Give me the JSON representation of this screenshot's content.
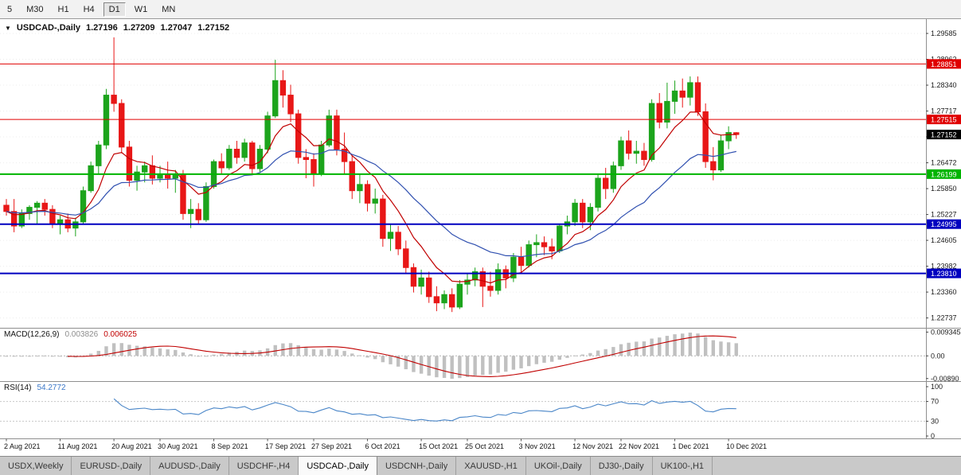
{
  "toolbar": {
    "timeframes": [
      "5",
      "M30",
      "H1",
      "H4",
      "D1",
      "W1",
      "MN"
    ],
    "selected": "D1"
  },
  "chart": {
    "title": {
      "symbol": "USDCAD-,Daily",
      "open": "1.27196",
      "high": "1.27209",
      "low": "1.27047",
      "close": "1.27152"
    },
    "current_price": {
      "value": "1.27152"
    },
    "price_axis": {
      "ticks": [
        "1.29585",
        "1.28962",
        "1.28340",
        "1.27717",
        "1.27095",
        "1.26472",
        "1.25850",
        "1.25227",
        "1.24605",
        "1.23982",
        "1.23360",
        "1.22737"
      ]
    },
    "hlines": [
      {
        "price": 1.28851,
        "label": "1.28851",
        "color": "#e00000",
        "width": 1
      },
      {
        "price": 1.27515,
        "label": "1.27515",
        "color": "#e00000",
        "width": 1
      },
      {
        "price": 1.26199,
        "label": "1.26199",
        "color": "#00b400",
        "width": 2
      },
      {
        "price": 1.24995,
        "label": "1.24995",
        "color": "#0000c0",
        "width": 2
      },
      {
        "price": 1.2381,
        "label": "1.23810",
        "color": "#0000c0",
        "width": 2
      }
    ],
    "date_axis": [
      {
        "label": "2 Aug 2021",
        "index": 0
      },
      {
        "label": "11 Aug 2021",
        "index": 7
      },
      {
        "label": "20 Aug 2021",
        "index": 14
      },
      {
        "label": "30 Aug 2021",
        "index": 20
      },
      {
        "label": "8 Sep 2021",
        "index": 27
      },
      {
        "label": "17 Sep 2021",
        "index": 34
      },
      {
        "label": "27 Sep 2021",
        "index": 40
      },
      {
        "label": "6 Oct 2021",
        "index": 47
      },
      {
        "label": "15 Oct 2021",
        "index": 54
      },
      {
        "label": "25 Oct 2021",
        "index": 60
      },
      {
        "label": "3 Nov 2021",
        "index": 67
      },
      {
        "label": "12 Nov 2021",
        "index": 74
      },
      {
        "label": "22 Nov 2021",
        "index": 80
      },
      {
        "label": "1 Dec 2021",
        "index": 87
      },
      {
        "label": "10 Dec 2021",
        "index": 94
      }
    ]
  },
  "indicators": {
    "macd": {
      "name": "MACD(12,26,9)",
      "fast": 12,
      "slow": 26,
      "signal": 9,
      "value": "0.003826",
      "signal_value": "0.006025",
      "axis_labels": [
        "0.009345",
        "0.00",
        "-0.00890"
      ]
    },
    "rsi": {
      "name": "RSI(14)",
      "period": 14,
      "value": "54.2772",
      "axis_labels": [
        "100",
        "70",
        "30",
        "0"
      ],
      "levels": [
        70,
        30
      ]
    }
  },
  "tabs": [
    {
      "label": "USDX,Weekly",
      "active": false
    },
    {
      "label": "EURUSD-,Daily",
      "active": false
    },
    {
      "label": "AUDUSD-,Daily",
      "active": false
    },
    {
      "label": "USDCHF-,H4",
      "active": false
    },
    {
      "label": "USDCAD-,Daily",
      "active": true
    },
    {
      "label": "USDCNH-,Daily",
      "active": false
    },
    {
      "label": "XAUUSD-,H1",
      "active": false
    },
    {
      "label": "UKOil-,Daily",
      "active": false
    },
    {
      "label": "DJ30-,Daily",
      "active": false
    },
    {
      "label": "UK100-,H1",
      "active": false
    }
  ],
  "colors": {
    "bull": "#1ca41c",
    "bear": "#e81717",
    "ma_fast": "#c00000",
    "ma_slow": "#3050b0",
    "macd_histogram": "#c0c0c0",
    "macd_signal": "#c00000",
    "rsi_line": "#4a86c8",
    "resistance": "#e00000",
    "support_green": "#00b400",
    "support_blue": "#0000c0",
    "current_price_bg": "#000000",
    "grid": "#ececec"
  },
  "chart_data": {
    "type": "candlestick",
    "symbol": "USDCAD-",
    "timeframe": "Daily",
    "price_range_visible": [
      1.225,
      1.2993
    ],
    "current_ohlc": {
      "open": 1.27196,
      "high": 1.27209,
      "low": 1.27047,
      "close": 1.27152
    },
    "candles": [
      [
        1.2545,
        1.256,
        1.252,
        1.253
      ],
      [
        1.253,
        1.256,
        1.248,
        1.2495
      ],
      [
        1.2495,
        1.2535,
        1.249,
        1.2525
      ],
      [
        1.2525,
        1.2545,
        1.251,
        1.254
      ],
      [
        1.254,
        1.2555,
        1.25,
        1.255
      ],
      [
        1.255,
        1.256,
        1.252,
        1.2535
      ],
      [
        1.2535,
        1.2545,
        1.249,
        1.25
      ],
      [
        1.25,
        1.252,
        1.2475,
        1.251
      ],
      [
        1.251,
        1.2525,
        1.248,
        1.249
      ],
      [
        1.249,
        1.2515,
        1.247,
        1.2505
      ],
      [
        1.2505,
        1.259,
        1.25,
        1.258
      ],
      [
        1.258,
        1.265,
        1.2575,
        1.264
      ],
      [
        1.264,
        1.27,
        1.262,
        1.269
      ],
      [
        1.269,
        1.2825,
        1.268,
        1.281
      ],
      [
        1.281,
        1.2949,
        1.277,
        1.279
      ],
      [
        1.279,
        1.28,
        1.267,
        1.2685
      ],
      [
        1.2685,
        1.27,
        1.259,
        1.2605
      ],
      [
        1.2605,
        1.264,
        1.258,
        1.2625
      ],
      [
        1.2625,
        1.265,
        1.26,
        1.264
      ],
      [
        1.264,
        1.2665,
        1.2595,
        1.261
      ],
      [
        1.261,
        1.264,
        1.26,
        1.262
      ],
      [
        1.262,
        1.265,
        1.2585,
        1.261
      ],
      [
        1.261,
        1.263,
        1.2575,
        1.262
      ],
      [
        1.262,
        1.263,
        1.251,
        1.2525
      ],
      [
        1.2525,
        1.256,
        1.249,
        1.2535
      ],
      [
        1.2535,
        1.255,
        1.25,
        1.251
      ],
      [
        1.251,
        1.26,
        1.2505,
        1.259
      ],
      [
        1.259,
        1.2655,
        1.2585,
        1.265
      ],
      [
        1.265,
        1.267,
        1.262,
        1.2635
      ],
      [
        1.2635,
        1.269,
        1.263,
        1.268
      ],
      [
        1.268,
        1.27,
        1.2645,
        1.266
      ],
      [
        1.266,
        1.2705,
        1.265,
        1.2695
      ],
      [
        1.2695,
        1.27,
        1.262,
        1.2633
      ],
      [
        1.2633,
        1.269,
        1.2625,
        1.268
      ],
      [
        1.268,
        1.277,
        1.267,
        1.276
      ],
      [
        1.276,
        1.2895,
        1.2755,
        1.2845
      ],
      [
        1.2845,
        1.287,
        1.278,
        1.281
      ],
      [
        1.281,
        1.2835,
        1.2745,
        1.2765
      ],
      [
        1.2765,
        1.2775,
        1.2645,
        1.266
      ],
      [
        1.266,
        1.268,
        1.261,
        1.2655
      ],
      [
        1.2655,
        1.267,
        1.259,
        1.262
      ],
      [
        1.262,
        1.27,
        1.2615,
        1.269
      ],
      [
        1.269,
        1.2775,
        1.2685,
        1.276
      ],
      [
        1.276,
        1.2775,
        1.2665,
        1.268
      ],
      [
        1.268,
        1.272,
        1.262,
        1.265
      ],
      [
        1.265,
        1.2665,
        1.256,
        1.258
      ],
      [
        1.258,
        1.262,
        1.255,
        1.2595
      ],
      [
        1.2595,
        1.2605,
        1.253,
        1.255
      ],
      [
        1.255,
        1.2585,
        1.2525,
        1.256
      ],
      [
        1.256,
        1.257,
        1.2445,
        1.2465
      ],
      [
        1.2465,
        1.25,
        1.2435,
        1.248
      ],
      [
        1.248,
        1.2495,
        1.2425,
        1.244
      ],
      [
        1.244,
        1.246,
        1.238,
        1.2395
      ],
      [
        1.2395,
        1.2405,
        1.2335,
        1.235
      ],
      [
        1.235,
        1.239,
        1.233,
        1.237
      ],
      [
        1.237,
        1.2385,
        1.231,
        1.2325
      ],
      [
        1.2325,
        1.235,
        1.229,
        1.231
      ],
      [
        1.231,
        1.234,
        1.2295,
        1.233
      ],
      [
        1.233,
        1.2345,
        1.2288,
        1.23
      ],
      [
        1.23,
        1.2365,
        1.2295,
        1.2355
      ],
      [
        1.2355,
        1.238,
        1.233,
        1.2365
      ],
      [
        1.2365,
        1.2395,
        1.235,
        1.2385
      ],
      [
        1.2385,
        1.2395,
        1.23,
        1.235
      ],
      [
        1.235,
        1.2385,
        1.2325,
        1.234
      ],
      [
        1.234,
        1.2405,
        1.233,
        1.239
      ],
      [
        1.239,
        1.24,
        1.2345,
        1.237
      ],
      [
        1.237,
        1.243,
        1.236,
        1.242
      ],
      [
        1.242,
        1.2445,
        1.238,
        1.24
      ],
      [
        1.24,
        1.246,
        1.2395,
        1.245
      ],
      [
        1.245,
        1.2475,
        1.242,
        1.2455
      ],
      [
        1.2455,
        1.247,
        1.2425,
        1.2445
      ],
      [
        1.2445,
        1.2465,
        1.2415,
        1.2435
      ],
      [
        1.2435,
        1.25,
        1.243,
        1.2495
      ],
      [
        1.2495,
        1.252,
        1.2475,
        1.2505
      ],
      [
        1.2505,
        1.256,
        1.2495,
        1.255
      ],
      [
        1.255,
        1.256,
        1.249,
        1.2505
      ],
      [
        1.2505,
        1.255,
        1.2485,
        1.254
      ],
      [
        1.254,
        1.262,
        1.253,
        1.261
      ],
      [
        1.261,
        1.2635,
        1.256,
        1.2585
      ],
      [
        1.2585,
        1.265,
        1.2575,
        1.264
      ],
      [
        1.264,
        1.271,
        1.263,
        1.27
      ],
      [
        1.27,
        1.2725,
        1.2655,
        1.267
      ],
      [
        1.267,
        1.27,
        1.2645,
        1.2675
      ],
      [
        1.2675,
        1.2695,
        1.264,
        1.2655
      ],
      [
        1.2655,
        1.28,
        1.265,
        1.279
      ],
      [
        1.279,
        1.2815,
        1.273,
        1.2745
      ],
      [
        1.2745,
        1.284,
        1.273,
        1.2795
      ],
      [
        1.2795,
        1.2845,
        1.2765,
        1.282
      ],
      [
        1.282,
        1.285,
        1.278,
        1.2805
      ],
      [
        1.2805,
        1.2855,
        1.2785,
        1.284
      ],
      [
        1.284,
        1.2855,
        1.276,
        1.277
      ],
      [
        1.277,
        1.279,
        1.2635,
        1.265
      ],
      [
        1.265,
        1.2685,
        1.2605,
        1.263
      ],
      [
        1.263,
        1.2715,
        1.2625,
        1.27
      ],
      [
        1.27,
        1.2735,
        1.268,
        1.272
      ],
      [
        1.27196,
        1.27209,
        1.27047,
        1.27152
      ]
    ]
  }
}
